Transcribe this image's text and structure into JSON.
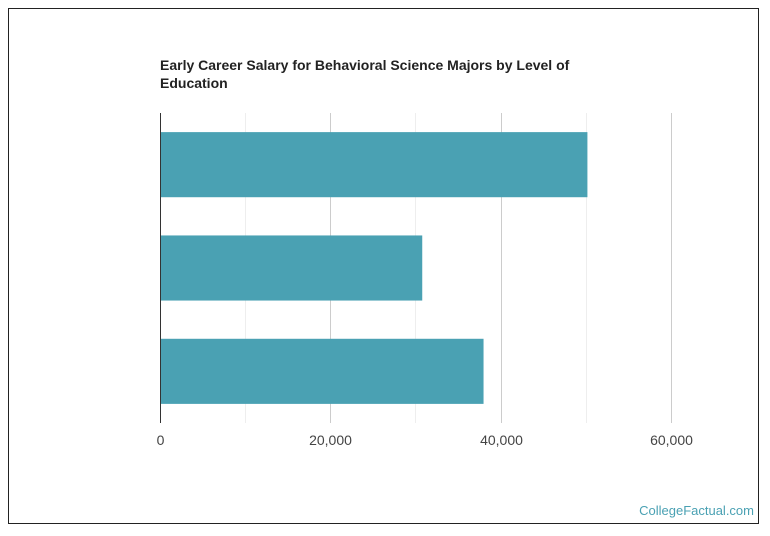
{
  "chart_data": {
    "type": "bar",
    "orientation": "horizontal",
    "title": "Early Career Salary for Behavioral Science Majors by Level of Education",
    "categories": [
      "",
      "",
      ""
    ],
    "values": [
      50200,
      30800,
      38000
    ],
    "xlim": [
      0,
      70000
    ],
    "xticks": [
      0,
      20000,
      40000,
      60000
    ],
    "xtick_labels": [
      "0",
      "20,000",
      "40,000",
      "60,000"
    ],
    "minor_gridlines": [
      10000,
      30000,
      50000
    ],
    "grid": true,
    "bar_color": "#4aa1b3"
  },
  "watermark": "CollegeFactual.com"
}
